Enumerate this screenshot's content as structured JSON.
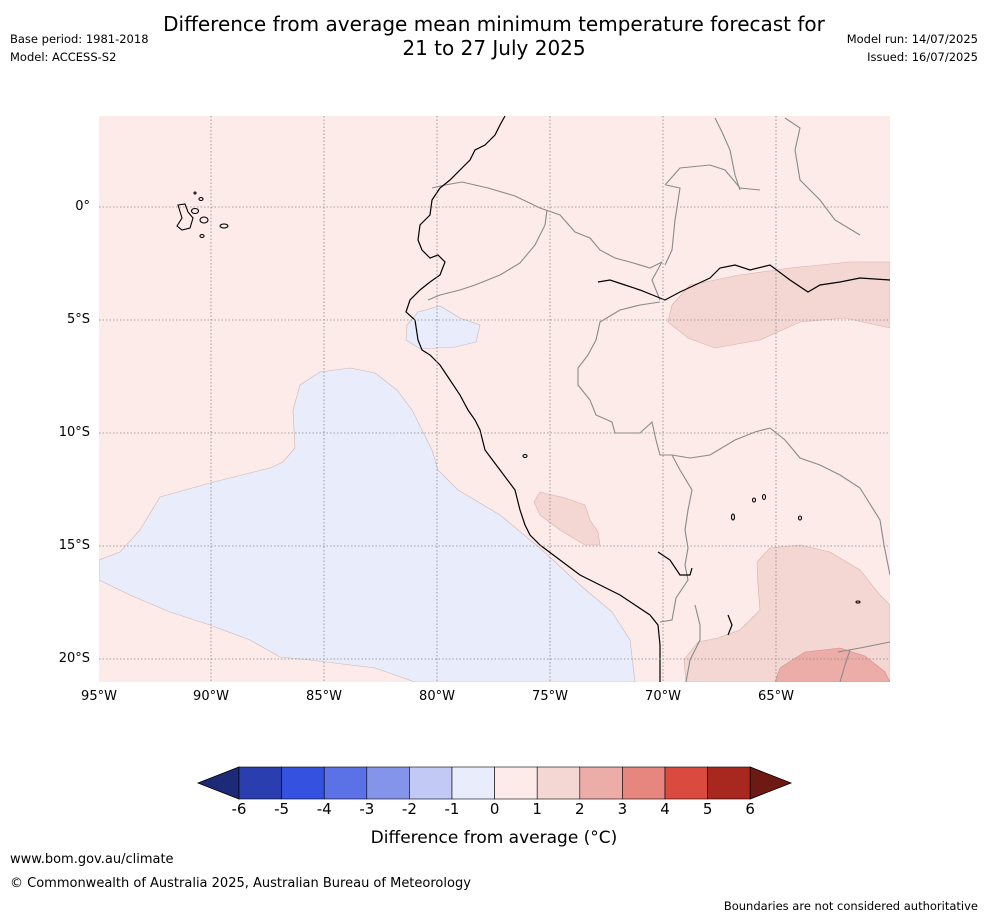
{
  "header": {
    "title_line1": "Difference from average mean minimum temperature forecast for",
    "title_line2": "21 to 27 July 2025",
    "base_period": "Base period: 1981-2018",
    "model": "Model: ACCESS-S2",
    "model_run": "Model run: 14/07/2025",
    "issued": "Issued: 16/07/2025"
  },
  "map": {
    "lat_labels": [
      "0°",
      "5°S",
      "10°S",
      "15°S",
      "20°S"
    ],
    "lon_labels": [
      "95°W",
      "90°W",
      "85°W",
      "80°W",
      "75°W",
      "70°W",
      "65°W"
    ],
    "land_fill": "#fcebe9",
    "cool_fill": "#e9ecfb"
  },
  "colorbar": {
    "ticks": [
      "-6",
      "-5",
      "-4",
      "-3",
      "-2",
      "-1",
      "0",
      "1",
      "2",
      "3",
      "4",
      "5",
      "6"
    ],
    "colors": [
      "#1c2a78",
      "#2a3eb0",
      "#3551e0",
      "#5b71e6",
      "#8494ea",
      "#c3c9f5",
      "#e9ecfb",
      "#fcebe9",
      "#f4d6d3",
      "#ecaca8",
      "#e6867f",
      "#db4a3f",
      "#a8281f",
      "#6e1a14"
    ],
    "label": "Difference from average (°C)"
  },
  "footer": {
    "url": "www.bom.gov.au/climate",
    "copyright": "© Commonwealth of Australia 2025, Australian Bureau of Meteorology",
    "disclaimer": "Boundaries are not considered authoritative"
  }
}
